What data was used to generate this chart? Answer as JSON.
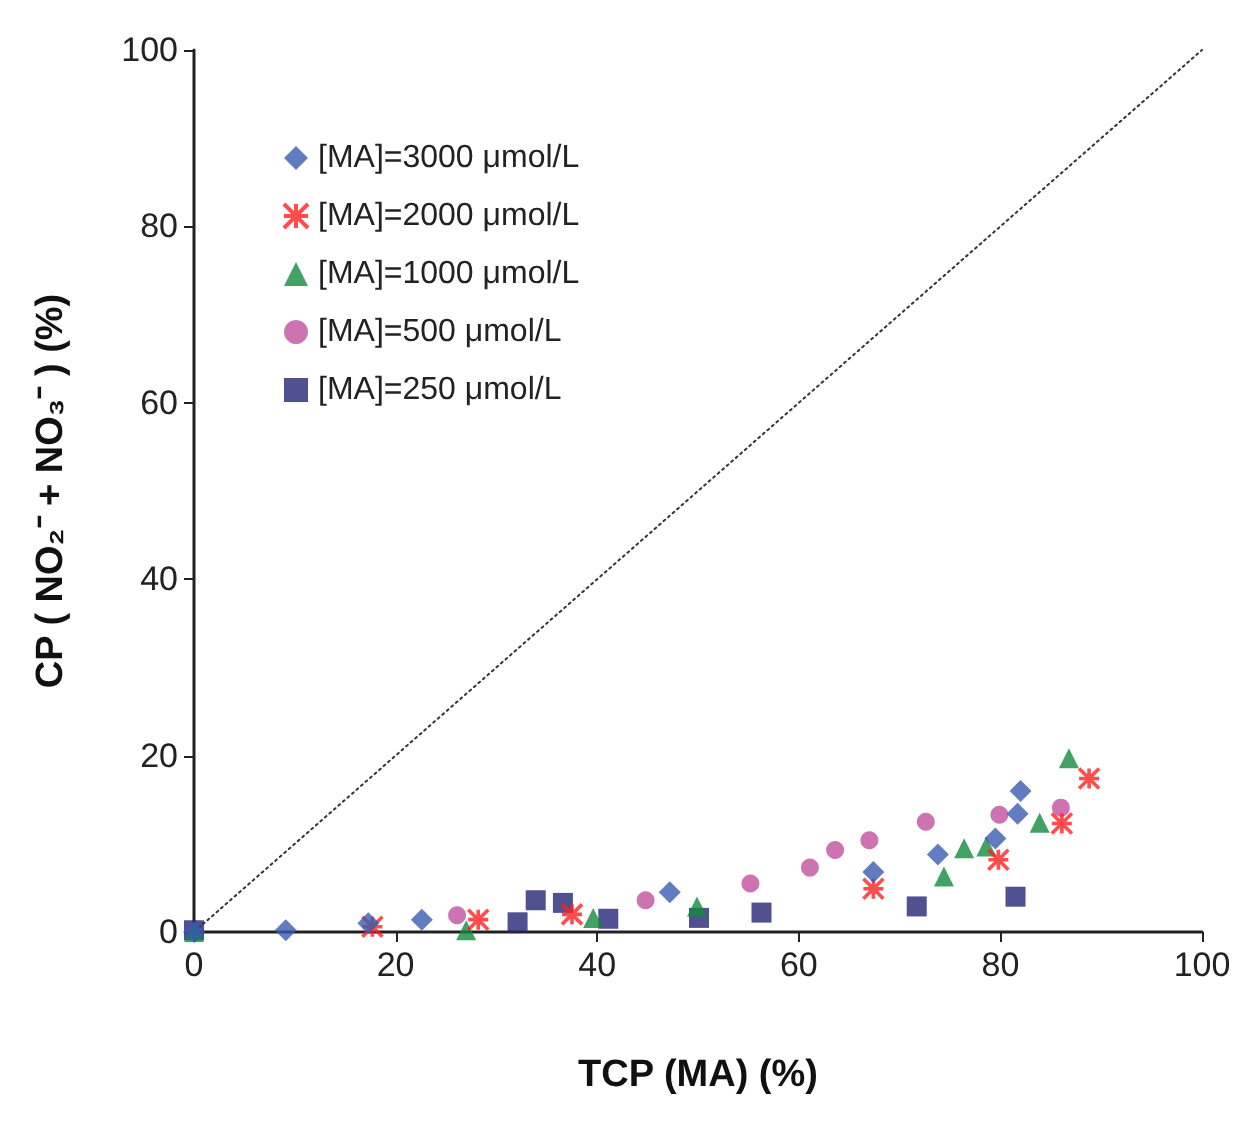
{
  "chart_data": {
    "type": "scatter",
    "xlabel": "TCP (MA) (%)",
    "ylabel": "CP ( NO₂⁻ + NO₃⁻ ) (%)",
    "xlim": [
      0,
      100
    ],
    "xticks": [
      0,
      20,
      40,
      60,
      80,
      100
    ],
    "ylim": [
      0,
      100
    ],
    "yticks": [
      0,
      20,
      40,
      60,
      80,
      100
    ],
    "grid": false,
    "legend": "top left",
    "series": [
      {
        "name": "[MA]=3000 μmol/L",
        "color": "#3a5bb0",
        "marker": "diamond",
        "x": [
          0,
          9.1,
          17.3,
          22.6,
          47.2,
          67.4,
          73.8,
          79.5,
          81.7,
          82
        ],
        "values": [
          0,
          0.2,
          1,
          1.4,
          4.5,
          6.8,
          8.8,
          10.6,
          13.4,
          16
        ]
      },
      {
        "name": "[MA]=2000 μmol/L",
        "color": "#ff2020",
        "marker": "cross",
        "x": [
          17.7,
          28.2,
          37.5,
          67.4,
          79.8,
          86.1,
          88.8
        ],
        "values": [
          0.6,
          1.4,
          2,
          4.9,
          8.2,
          12.3,
          17.4
        ]
      },
      {
        "name": "[MA]=1000 μmol/L",
        "color": "#138a3c",
        "marker": "triangle",
        "x": [
          0,
          27,
          39.6,
          49.9,
          74.4,
          76.4,
          78.6,
          83.9,
          86.8
        ],
        "values": [
          0,
          0.2,
          1.6,
          2.9,
          6.3,
          9.5,
          9.7,
          12.4,
          19.7
        ]
      },
      {
        "name": "[MA]=500 μmol/L",
        "color": "#c0509e",
        "marker": "circle",
        "x": [
          26.1,
          44.8,
          55.2,
          61.1,
          63.6,
          67,
          72.6,
          79.9,
          86
        ],
        "values": [
          1.9,
          3.6,
          5.5,
          7.3,
          9.3,
          10.4,
          12.5,
          13.3,
          14.1
        ]
      },
      {
        "name": "[MA]=250 μmol/L",
        "color": "#232675",
        "marker": "square",
        "x": [
          0,
          32.1,
          33.9,
          36.6,
          41.1,
          50.1,
          56.3,
          71.7,
          81.5
        ],
        "values": [
          0.2,
          1.1,
          3.6,
          3.3,
          1.5,
          1.6,
          2.2,
          2.9,
          4
        ]
      },
      {
        "type": "line",
        "color": "#333333",
        "line_style": "dotted",
        "marker": "none",
        "x": [
          0,
          100
        ],
        "values": [
          0,
          100
        ]
      }
    ]
  }
}
